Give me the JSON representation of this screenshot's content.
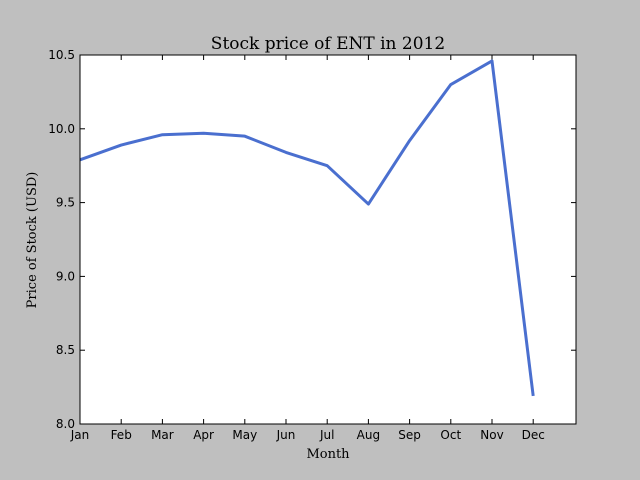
{
  "chart_data": {
    "type": "line",
    "title": "Stock price of ENT in 2012",
    "xlabel": "Month",
    "ylabel": "Price of Stock (USD)",
    "categories": [
      "Jan",
      "Feb",
      "Mar",
      "Apr",
      "May",
      "Jun",
      "Jul",
      "Aug",
      "Sep",
      "Oct",
      "Nov",
      "Dec"
    ],
    "series": [
      {
        "values": [
          9.79,
          9.89,
          9.96,
          9.97,
          9.95,
          9.84,
          9.75,
          9.49,
          9.92,
          10.3,
          10.46,
          8.19
        ],
        "color": "#4a6fcf"
      }
    ],
    "ylim": [
      8.0,
      10.5
    ],
    "yticks": [
      "8.0",
      "8.5",
      "9.0",
      "9.5",
      "10.0",
      "10.5"
    ],
    "xticks": [
      "Jan",
      "Feb",
      "Mar",
      "Apr",
      "May",
      "Jun",
      "Jul",
      "Aug",
      "Sep",
      "Oct",
      "Nov",
      "Dec"
    ],
    "grid": false,
    "legend": "none",
    "background": "#bfbfbf",
    "plot_background": "#ffffff"
  }
}
